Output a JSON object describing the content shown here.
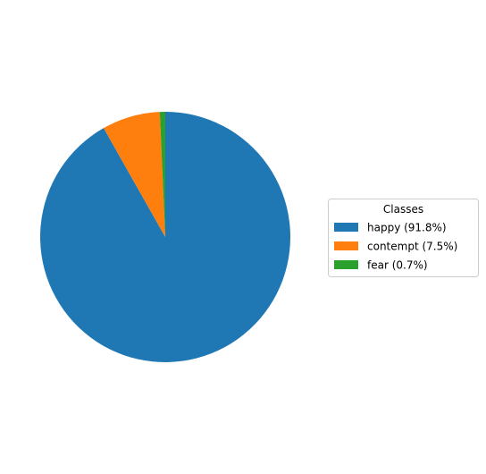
{
  "chart_data": {
    "type": "pie",
    "title": "",
    "categories": [
      "happy",
      "contempt",
      "fear"
    ],
    "values": [
      91.8,
      7.5,
      0.7
    ],
    "colors": [
      "#1f77b4",
      "#ff7f0e",
      "#2ca02c"
    ],
    "start_angle_deg": 90,
    "direction": "clockwise",
    "legend": {
      "title": "Classes",
      "placement": "right",
      "entries": [
        "happy (91.8%)",
        "contempt (7.5%)",
        "fear (0.7%)"
      ]
    }
  }
}
